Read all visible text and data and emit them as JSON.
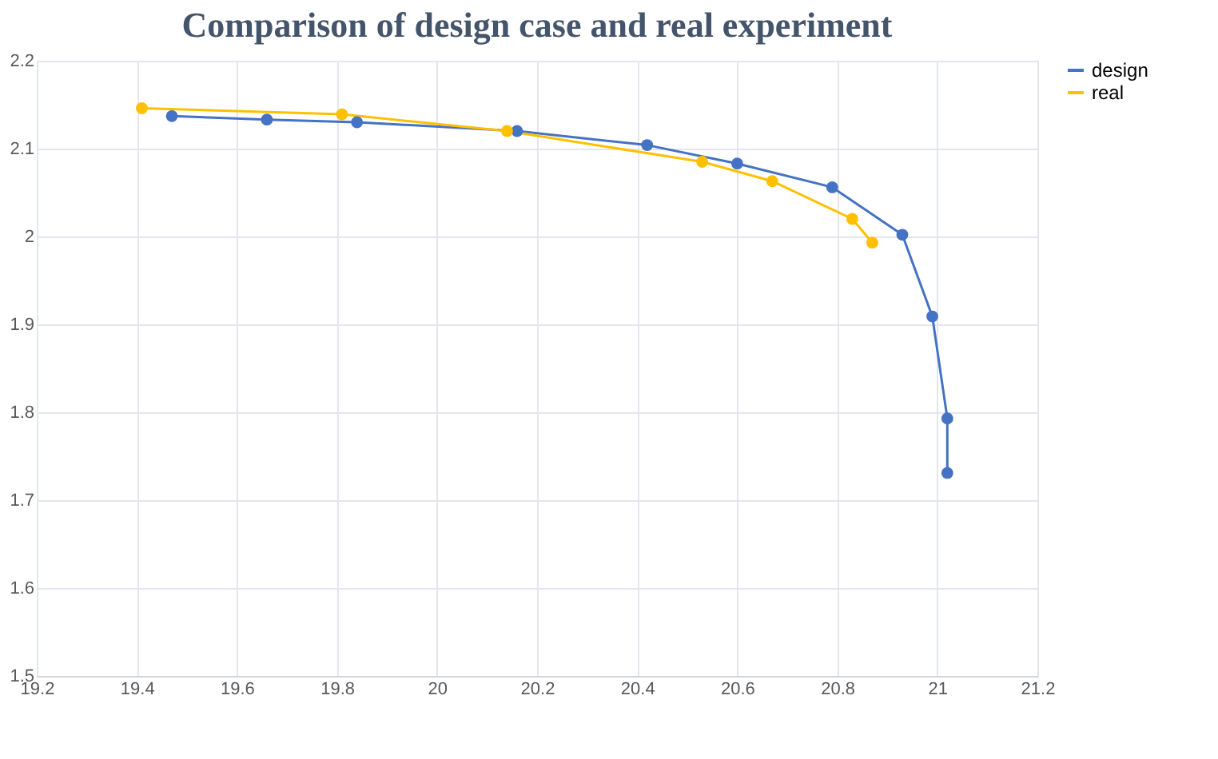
{
  "chart_data": {
    "type": "line",
    "title": "Comparison of design case and real experiment",
    "series": [
      {
        "name": "design",
        "color": "#4472c4",
        "x": [
          19.47,
          19.66,
          19.84,
          20.16,
          20.42,
          20.6,
          20.79,
          20.93,
          20.99,
          21.02,
          21.02
        ],
        "values": [
          2.137,
          2.133,
          2.13,
          2.12,
          2.104,
          2.083,
          2.056,
          2.002,
          1.909,
          1.793,
          1.731
        ]
      },
      {
        "name": "real",
        "color": "#ffc000",
        "x": [
          19.41,
          19.81,
          20.14,
          20.53,
          20.67,
          20.83,
          20.87
        ],
        "values": [
          2.146,
          2.139,
          2.12,
          2.085,
          2.063,
          2.02,
          1.993
        ]
      }
    ],
    "xlim": [
      19.2,
      21.2
    ],
    "xticks": [
      19.2,
      19.4,
      19.6,
      19.8,
      20,
      20.2,
      20.4,
      20.6,
      20.8,
      21,
      21.2
    ],
    "ylim": [
      1.5,
      2.2
    ],
    "yticks": [
      1.5,
      1.6,
      1.7,
      1.8,
      1.9,
      2,
      2.1,
      2.2
    ],
    "grid": true,
    "legend": "top right",
    "marker": "circle",
    "line_style": "solid"
  }
}
